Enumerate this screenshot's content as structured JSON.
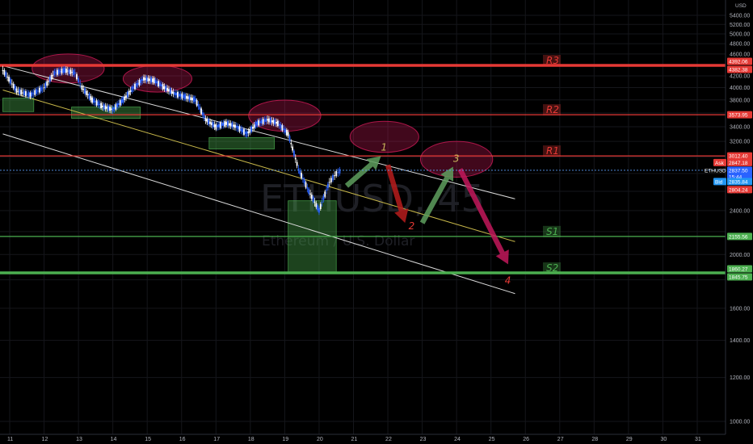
{
  "chart_data": {
    "type": "candlestick",
    "currency": "USD",
    "watermark": {
      "symbol_timeframe": "ETHUSD, 45",
      "description": "Ethereum / U.S. Dollar"
    },
    "ylim": [
      900,
      5500
    ],
    "y_scale": "log",
    "xlim": [
      10.8,
      32.1
    ],
    "y_ticks": [
      1000,
      1200,
      1400,
      1600,
      1800,
      2000,
      2200,
      2400,
      2600,
      2800,
      3000,
      3200,
      3400,
      3600,
      3800,
      4000,
      4200,
      4400,
      4600,
      4800,
      5000,
      5200,
      5400
    ],
    "y_tick_labels": [
      "1000.00",
      "1200.00",
      "1400.00",
      "1600.00",
      "1800.00",
      "2000.00",
      "2200.00",
      "2400.00",
      "2600.00",
      "2800.00",
      "3000.00",
      "3200.00",
      "3400.00",
      "3600.00",
      "3800.00",
      "4000.00",
      "4200.00",
      "4400.00",
      "4600.00",
      "4800.00",
      "5000.00",
      "5200.00",
      "5400.00"
    ],
    "x_ticks": [
      11,
      12,
      13,
      14,
      15,
      16,
      17,
      18,
      19,
      20,
      21,
      22,
      23,
      24,
      25,
      26,
      27,
      28,
      29,
      30,
      31
    ],
    "x_tick_labels": [
      "11",
      "12",
      "13",
      "14",
      "15",
      "16",
      "17",
      "18",
      "19",
      "20",
      "21",
      "22",
      "23",
      "24",
      "25",
      "26",
      "27",
      "28",
      "29",
      "30",
      "31"
    ],
    "price_path": [
      [
        10.8,
        4300
      ],
      [
        11.2,
        3950
      ],
      [
        11.6,
        3880
      ],
      [
        12.0,
        4000
      ],
      [
        12.3,
        4250
      ],
      [
        12.6,
        4300
      ],
      [
        12.9,
        4250
      ],
      [
        13.1,
        4000
      ],
      [
        13.4,
        3800
      ],
      [
        13.7,
        3700
      ],
      [
        14.0,
        3650
      ],
      [
        14.3,
        3800
      ],
      [
        14.6,
        4000
      ],
      [
        14.9,
        4150
      ],
      [
        15.2,
        4120
      ],
      [
        15.5,
        4000
      ],
      [
        15.8,
        3900
      ],
      [
        16.1,
        3850
      ],
      [
        16.4,
        3800
      ],
      [
        16.7,
        3500
      ],
      [
        17.0,
        3400
      ],
      [
        17.3,
        3450
      ],
      [
        17.6,
        3400
      ],
      [
        17.9,
        3300
      ],
      [
        18.2,
        3450
      ],
      [
        18.5,
        3500
      ],
      [
        18.8,
        3450
      ],
      [
        19.1,
        3300
      ],
      [
        19.4,
        2850
      ],
      [
        19.7,
        2600
      ],
      [
        20.0,
        2400
      ],
      [
        20.3,
        2700
      ],
      [
        20.5,
        2800
      ],
      [
        20.65,
        2838
      ]
    ],
    "current_price": {
      "value": 2837.5,
      "label": "2837.50",
      "countdown": "15:44"
    },
    "ask": {
      "label": "Ask",
      "value": "2847.18"
    },
    "bid": {
      "label": "Bid",
      "value": "2835.84"
    },
    "levels": [
      {
        "name": "R3",
        "price_labels": [
          "4392.06",
          "4382.38"
        ],
        "value": 4387,
        "color": "#e53935"
      },
      {
        "name": "R2",
        "price_labels": [
          "3573.95"
        ],
        "value": 3574,
        "color": "#e53935"
      },
      {
        "name": "R1",
        "price_labels": [
          "3012.40"
        ],
        "value": 3012,
        "color": "#e53935"
      },
      {
        "name": "S1",
        "price_labels": [
          "2155.56"
        ],
        "value": 2156,
        "color": "#4caf50"
      },
      {
        "name": "S2",
        "price_labels": [
          "1860.27",
          "1845.75"
        ],
        "value": 1853,
        "color": "#4caf50"
      }
    ],
    "extra_price_labels": [
      "2804.24"
    ],
    "channel_lines": [
      {
        "from": [
          10.8,
          4380
        ],
        "to": [
          25.7,
          2520
        ],
        "color": "#d9d9d9"
      },
      {
        "from": [
          10.8,
          3960
        ],
        "to": [
          25.7,
          2110
        ],
        "color": "#c8b84a"
      },
      {
        "from": [
          10.8,
          3300
        ],
        "to": [
          25.7,
          1700
        ],
        "color": "#d9d9d9"
      }
    ],
    "highlight_ellipses": [
      {
        "center": [
          12.7,
          4330
        ],
        "rx_days": 1.05,
        "ry_price": 260
      },
      {
        "center": [
          15.3,
          4150
        ],
        "rx_days": 1.0,
        "ry_price": 230
      },
      {
        "center": [
          19.0,
          3560
        ],
        "rx_days": 1.05,
        "ry_price": 230
      },
      {
        "center": [
          21.9,
          3260
        ],
        "rx_days": 1.0,
        "ry_price": 210
      },
      {
        "center": [
          24.0,
          2970
        ],
        "rx_days": 1.05,
        "ry_price": 220
      }
    ],
    "support_boxes": [
      {
        "x": [
          10.8,
          11.7
        ],
        "y": [
          3620,
          3830
        ]
      },
      {
        "x": [
          12.8,
          14.8
        ],
        "y": [
          3520,
          3690
        ]
      },
      {
        "x": [
          16.8,
          18.7
        ],
        "y": [
          3100,
          3250
        ]
      },
      {
        "x": [
          19.1,
          20.5
        ],
        "y": [
          1850,
          2500
        ]
      }
    ],
    "projection": [
      {
        "label": "1",
        "arrow_from": [
          20.8,
          2660
        ],
        "arrow_to": [
          21.8,
          3010
        ],
        "color": "#5e9f5e",
        "label_at": [
          21.8,
          3080
        ]
      },
      {
        "label": "2",
        "arrow_from": [
          22.0,
          2900
        ],
        "arrow_to": [
          22.5,
          2280
        ],
        "color": "#b71c1c",
        "label_at": [
          22.6,
          2220
        ]
      },
      {
        "label": "3",
        "arrow_from": [
          23.0,
          2280
        ],
        "arrow_to": [
          23.9,
          2880
        ],
        "color": "#5e9f5e",
        "label_at": [
          23.9,
          2940
        ]
      },
      {
        "label": "4",
        "arrow_from": [
          24.1,
          2850
        ],
        "arrow_to": [
          25.5,
          1920
        ],
        "color": "#c2185b",
        "label_at": [
          25.4,
          1770
        ]
      }
    ]
  }
}
